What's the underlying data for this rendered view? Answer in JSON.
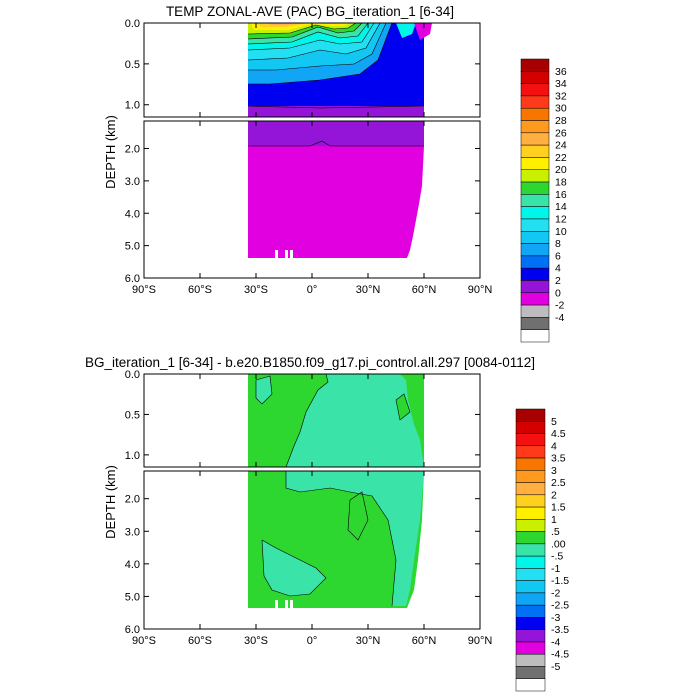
{
  "chart_data": [
    {
      "type": "heatmap",
      "title": "TEMP ZONAL-AVE (PAC) BG_iteration_1 [6-34]",
      "ylabel": "DEPTH (km)",
      "xlabel": "",
      "x_ticks": [
        "90°S",
        "60°S",
        "30°S",
        "0°",
        "30°N",
        "60°N",
        "90°N"
      ],
      "y_ticks_upper": [
        "0.0",
        "0.5",
        "1.0"
      ],
      "y_ticks_lower": [
        "2.0",
        "3.0",
        "4.0",
        "5.0",
        "6.0"
      ],
      "xlim": [
        -90,
        90
      ],
      "ylim_km": [
        0,
        6
      ],
      "data_extent": {
        "lat": [
          -33,
          62
        ],
        "depth_km": [
          0,
          5.35
        ]
      },
      "colorbar_labels": [
        "36",
        "34",
        "32",
        "30",
        "28",
        "26",
        "24",
        "22",
        "20",
        "18",
        "16",
        "14",
        "12",
        "10",
        "8",
        "6",
        "4",
        "2",
        "0",
        "-2",
        "-4"
      ],
      "colorbar_colors": [
        "#a80000",
        "#d40000",
        "#f41010",
        "#ff3a1a",
        "#f87600",
        "#ff9a1e",
        "#ffb040",
        "#ffd020",
        "#fff000",
        "#c8f000",
        "#2ed630",
        "#3ae3a8",
        "#00f6e9",
        "#22dff2",
        "#12c8f2",
        "#10a6f5",
        "#0070f5",
        "#0000f0",
        "#9414d8",
        "#e000e0",
        "#bdbdbd",
        "#707070",
        "#ffffff"
      ],
      "bands_upper": [
        {
          "value": 24,
          "color": "#ffb040",
          "top": 0.0,
          "bottom": 0.03
        },
        {
          "value": 22,
          "color": "#ffd020",
          "top": 0.03,
          "bottom": 0.06
        },
        {
          "value": 20,
          "color": "#fff000",
          "top": 0.06,
          "bottom": 0.09
        },
        {
          "value": 18,
          "color": "#c8f000",
          "top": 0.09,
          "bottom": 0.12
        },
        {
          "value": 16,
          "color": "#2ed630",
          "top": 0.12,
          "bottom": 0.15
        },
        {
          "value": 14,
          "color": "#3ae3a8",
          "top": 0.15,
          "bottom": 0.18
        },
        {
          "value": 12,
          "color": "#00f6e9",
          "top": 0.18,
          "bottom": 0.22
        },
        {
          "value": 10,
          "color": "#22dff2",
          "top": 0.22,
          "bottom": 0.3
        },
        {
          "value": 8,
          "color": "#12c8f2",
          "top": 0.3,
          "bottom": 0.42
        },
        {
          "value": 6,
          "color": "#10a6f5",
          "top": 0.42,
          "bottom": 0.66
        },
        {
          "value": 4,
          "color": "#0000f0",
          "top": 0.66,
          "bottom": 1.05
        },
        {
          "value": 2,
          "color": "#9414d8",
          "top": 1.05,
          "bottom": 1.15
        }
      ],
      "bands_lower": [
        {
          "value": 2,
          "color": "#9414d8",
          "top": 1.15,
          "bottom": 1.85
        },
        {
          "value": 0,
          "color": "#e000e0",
          "top": 1.85,
          "bottom": 5.35
        }
      ]
    },
    {
      "type": "heatmap",
      "title": "BG_iteration_1 [6-34] - b.e20.B1850.f09_g17.pi_control.all.297 [0084-0112]",
      "ylabel": "DEPTH (km)",
      "xlabel": "",
      "x_ticks": [
        "90°S",
        "60°S",
        "30°S",
        "0°",
        "30°N",
        "60°N",
        "90°N"
      ],
      "y_ticks_upper": [
        "0.0",
        "0.5",
        "1.0"
      ],
      "y_ticks_lower": [
        "2.0",
        "3.0",
        "4.0",
        "5.0",
        "6.0"
      ],
      "xlim": [
        -90,
        90
      ],
      "ylim_km": [
        0,
        6
      ],
      "data_extent": {
        "lat": [
          -33,
          62
        ],
        "depth_km": [
          0,
          5.35
        ]
      },
      "colorbar_labels": [
        "5",
        "4.5",
        "4",
        "3.5",
        "3",
        "2.5",
        "2",
        "1.5",
        "1",
        ".5",
        ".00",
        "-.5",
        "-1",
        "-1.5",
        "-2",
        "-2.5",
        "-3",
        "-3.5",
        "-4",
        "-4.5",
        "-5"
      ],
      "colorbar_colors": [
        "#a80000",
        "#d40000",
        "#f41010",
        "#ff3a1a",
        "#f87600",
        "#ff9a1e",
        "#ffb040",
        "#ffd020",
        "#fff000",
        "#c8f000",
        "#2ed630",
        "#3ae3a8",
        "#00f6e9",
        "#22dff2",
        "#12c8f2",
        "#10a6f5",
        "#0070f5",
        "#0000f0",
        "#9414d8",
        "#e000e0",
        "#bdbdbd",
        "#707070",
        "#ffffff"
      ],
      "background_value": 0.25,
      "background_color": "#2ed630",
      "anomaly_value": -0.25,
      "anomaly_color": "#3ae3a8"
    }
  ]
}
